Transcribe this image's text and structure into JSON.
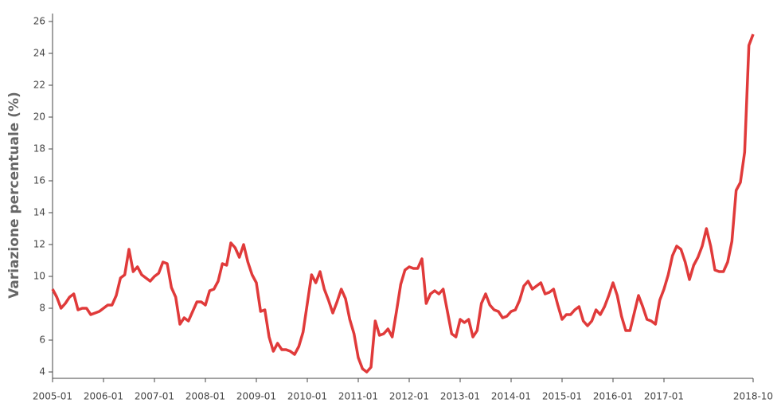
{
  "chart_data": {
    "type": "line",
    "y_label": "Variazione percentuale (%)",
    "color": "#e03a3a",
    "x": [
      "2005-01",
      "2005-02",
      "2005-03",
      "2005-04",
      "2005-05",
      "2005-06",
      "2005-07",
      "2005-08",
      "2005-09",
      "2005-10",
      "2005-11",
      "2005-12",
      "2006-01",
      "2006-02",
      "2006-03",
      "2006-04",
      "2006-05",
      "2006-06",
      "2006-07",
      "2006-08",
      "2006-09",
      "2006-10",
      "2006-11",
      "2006-12",
      "2007-01",
      "2007-02",
      "2007-03",
      "2007-04",
      "2007-05",
      "2007-06",
      "2007-07",
      "2007-08",
      "2007-09",
      "2007-10",
      "2007-11",
      "2007-12",
      "2008-01",
      "2008-02",
      "2008-03",
      "2008-04",
      "2008-05",
      "2008-06",
      "2008-07",
      "2008-08",
      "2008-09",
      "2008-10",
      "2008-11",
      "2008-12",
      "2009-01",
      "2009-02",
      "2009-03",
      "2009-04",
      "2009-05",
      "2009-06",
      "2009-07",
      "2009-08",
      "2009-09",
      "2009-10",
      "2009-11",
      "2009-12",
      "2010-01",
      "2010-02",
      "2010-03",
      "2010-04",
      "2010-05",
      "2010-06",
      "2010-07",
      "2010-08",
      "2010-09",
      "2010-10",
      "2010-11",
      "2010-12",
      "2011-01",
      "2011-02",
      "2011-03",
      "2011-04",
      "2011-05",
      "2011-06",
      "2011-07",
      "2011-08",
      "2011-09",
      "2011-10",
      "2011-11",
      "2011-12",
      "2012-01",
      "2012-02",
      "2012-03",
      "2012-04",
      "2012-05",
      "2012-06",
      "2012-07",
      "2012-08",
      "2012-09",
      "2012-10",
      "2012-11",
      "2012-12",
      "2013-01",
      "2013-02",
      "2013-03",
      "2013-04",
      "2013-05",
      "2013-06",
      "2013-07",
      "2013-08",
      "2013-09",
      "2013-10",
      "2013-11",
      "2013-12",
      "2014-01",
      "2014-02",
      "2014-03",
      "2014-04",
      "2014-05",
      "2014-06",
      "2014-07",
      "2014-08",
      "2014-09",
      "2014-10",
      "2014-11",
      "2014-12",
      "2015-01",
      "2015-02",
      "2015-03",
      "2015-04",
      "2015-05",
      "2015-06",
      "2015-07",
      "2015-08",
      "2015-09",
      "2015-10",
      "2015-11",
      "2015-12",
      "2016-01",
      "2016-02",
      "2016-03",
      "2016-04",
      "2016-05",
      "2016-06",
      "2016-07",
      "2016-08",
      "2016-09",
      "2016-10",
      "2016-11",
      "2016-12",
      "2017-01",
      "2017-02",
      "2017-03",
      "2017-04",
      "2017-05",
      "2017-06",
      "2017-07",
      "2017-08",
      "2017-09",
      "2017-10",
      "2017-11",
      "2017-12",
      "2018-01",
      "2018-02",
      "2018-03",
      "2018-04",
      "2018-05",
      "2018-06",
      "2018-07",
      "2018-08",
      "2018-09",
      "2018-10"
    ],
    "values": [
      9.2,
      8.7,
      8.0,
      8.3,
      8.7,
      8.9,
      7.9,
      8.0,
      8.0,
      7.6,
      7.7,
      7.8,
      8.0,
      8.2,
      8.2,
      8.8,
      9.9,
      10.1,
      11.7,
      10.3,
      10.6,
      10.1,
      9.9,
      9.7,
      10.0,
      10.2,
      10.9,
      10.8,
      9.3,
      8.7,
      7.0,
      7.4,
      7.2,
      7.8,
      8.4,
      8.4,
      8.2,
      9.1,
      9.2,
      9.7,
      10.8,
      10.7,
      12.1,
      11.8,
      11.2,
      12.0,
      10.9,
      10.1,
      9.6,
      7.8,
      7.9,
      6.2,
      5.3,
      5.8,
      5.4,
      5.4,
      5.3,
      5.1,
      5.6,
      6.5,
      8.3,
      10.1,
      9.6,
      10.3,
      9.2,
      8.5,
      7.7,
      8.4,
      9.2,
      8.6,
      7.3,
      6.4,
      4.9,
      4.2,
      4.0,
      4.3,
      7.2,
      6.3,
      6.4,
      6.7,
      6.2,
      7.8,
      9.5,
      10.4,
      10.6,
      10.5,
      10.5,
      11.1,
      8.3,
      8.9,
      9.1,
      8.9,
      9.2,
      7.8,
      6.4,
      6.2,
      7.3,
      7.1,
      7.3,
      6.2,
      6.6,
      8.3,
      8.9,
      8.2,
      7.9,
      7.8,
      7.4,
      7.5,
      7.8,
      7.9,
      8.5,
      9.4,
      9.7,
      9.2,
      9.4,
      9.6,
      8.9,
      9.0,
      9.2,
      8.2,
      7.3,
      7.6,
      7.6,
      7.9,
      8.1,
      7.2,
      6.9,
      7.2,
      7.9,
      7.6,
      8.1,
      8.8,
      9.6,
      8.8,
      7.5,
      6.6,
      6.6,
      7.7,
      8.8,
      8.1,
      7.3,
      7.2,
      7.0,
      8.5,
      9.2,
      10.1,
      11.3,
      11.9,
      11.7,
      10.9,
      9.8,
      10.7,
      11.2,
      11.9,
      13.0,
      11.9,
      10.4,
      10.3,
      10.3,
      10.9,
      12.2,
      15.4,
      15.9,
      17.8,
      24.5,
      25.2
    ],
    "xticks": [
      "2005-01",
      "2006-01",
      "2007-01",
      "2008-01",
      "2009-01",
      "2010-01",
      "2011-01",
      "2012-01",
      "2013-01",
      "2014-01",
      "2015-01",
      "2016-01",
      "2017-01",
      "2018-10"
    ],
    "ylim": [
      3.6,
      26.5
    ],
    "yticks": [
      4,
      6,
      8,
      10,
      12,
      14,
      16,
      18,
      20,
      22,
      24,
      26
    ]
  }
}
